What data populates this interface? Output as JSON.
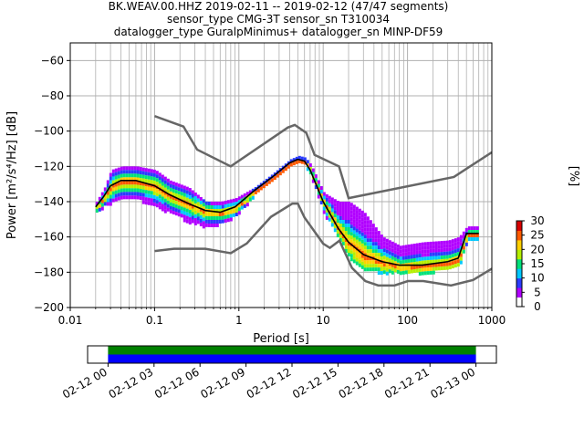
{
  "chart_data": [
    {
      "type": "heatmap",
      "title": [
        "BK.WEAV.00.HHZ   2019-02-11 -- 2019-02-12  (47/47 segments)",
        "sensor_type CMG-3T sensor_sn T310034",
        "datalogger_type GuralpMinimus+ datalogger_sn MINP-DF59"
      ],
      "xlabel": "Period [s]",
      "ylabel": "Power [m²/s⁴/Hz] [dB]",
      "xscale": "log",
      "xlim": [
        0.01,
        1000
      ],
      "ylim": [
        -200,
        -50
      ],
      "xticks": [
        {
          "value": 0.01,
          "label": "0.01"
        },
        {
          "value": 0.1,
          "label": "0.1"
        },
        {
          "value": 1,
          "label": "1"
        },
        {
          "value": 10,
          "label": "10"
        },
        {
          "value": 100,
          "label": "100"
        },
        {
          "value": 1000,
          "label": "1000"
        }
      ],
      "yticks": [
        {
          "value": -60,
          "label": "−60"
        },
        {
          "value": -80,
          "label": "−80"
        },
        {
          "value": -100,
          "label": "−100"
        },
        {
          "value": -120,
          "label": "−120"
        },
        {
          "value": -140,
          "label": "−140"
        },
        {
          "value": -160,
          "label": "−160"
        },
        {
          "value": -180,
          "label": "−180"
        },
        {
          "value": -200,
          "label": "−200"
        }
      ],
      "grid": true,
      "noise_models": {
        "nhnm": {
          "x": [
            0.1,
            0.22,
            0.32,
            0.8,
            3.8,
            4.6,
            6.3,
            7.9,
            15.4,
            20,
            354.8,
            1000
          ],
          "y": [
            -91.5,
            -97.4,
            -110.5,
            -120,
            -98,
            -96.5,
            -101,
            -113.5,
            -120,
            -138,
            -126,
            -112
          ]
        },
        "nlnm": {
          "x": [
            0.1,
            0.17,
            0.4,
            0.8,
            1.24,
            2.4,
            4.3,
            5,
            6,
            10,
            12,
            15.6,
            21.9,
            31.6,
            45,
            70,
            101,
            154,
            328,
            600,
            1000
          ],
          "y": [
            -168,
            -166.7,
            -166.7,
            -169.2,
            -163.7,
            -148.6,
            -141.1,
            -141.1,
            -149,
            -163.8,
            -166.2,
            -162.1,
            -177.5,
            -185,
            -187.5,
            -187.5,
            -185,
            -185,
            -187.5,
            -184.4,
            -178
          ]
        }
      },
      "series": [
        {
          "x": [
            0.02,
            0.025,
            0.03,
            0.04,
            0.06,
            0.1,
            0.15,
            0.25,
            0.4,
            0.6,
            0.9,
            1.5,
            2.5,
            4,
            5,
            6,
            7,
            10,
            15,
            20,
            30,
            50,
            80,
            150,
            300,
            400,
            500,
            700
          ],
          "y": [
            -143,
            -137,
            -131,
            -128,
            -128,
            -131,
            -136,
            -141,
            -145,
            -146,
            -143,
            -134,
            -126,
            -118,
            -116,
            -117,
            -122,
            -140,
            -155,
            -163,
            -170,
            -174,
            -176,
            -176,
            -174,
            -172,
            -158,
            -158
          ]
        }
      ],
      "heatmap_bands": {
        "x": [
          0.02,
          0.025,
          0.03,
          0.04,
          0.06,
          0.1,
          0.15,
          0.25,
          0.4,
          0.6,
          0.9,
          1.5,
          2.5,
          4,
          5,
          6,
          7,
          10,
          15,
          20,
          30,
          50,
          80,
          150,
          300,
          400,
          500,
          700
        ],
        "upper": [
          -140,
          -132,
          -122,
          -120,
          -120,
          -122,
          -128,
          -132,
          -140,
          -140,
          -138,
          -132,
          -124,
          -116,
          -114,
          -115,
          -119,
          -135,
          -140,
          -140,
          -146,
          -160,
          -165,
          -163,
          -162,
          -160,
          -154,
          -154
        ],
        "lower": [
          -146,
          -142,
          -140,
          -138,
          -138,
          -142,
          -146,
          -151,
          -154,
          -152,
          -148,
          -136,
          -128,
          -120,
          -118,
          -119,
          -125,
          -146,
          -160,
          -172,
          -178,
          -180,
          -180,
          -180,
          -178,
          -176,
          -162,
          -162
        ]
      },
      "colorbar": {
        "label": "[%]",
        "range": [
          0,
          30
        ],
        "ticks": [
          {
            "value": 0,
            "label": "0"
          },
          {
            "value": 5,
            "label": "5"
          },
          {
            "value": 10,
            "label": "10"
          },
          {
            "value": 15,
            "label": "15"
          },
          {
            "value": 20,
            "label": "20"
          },
          {
            "value": 25,
            "label": "25"
          },
          {
            "value": 30,
            "label": "30"
          }
        ],
        "colors": [
          "#ffffff",
          "#b100ff",
          "#2a3cff",
          "#00c8ff",
          "#00e27a",
          "#b5f000",
          "#ffd000",
          "#ff5a00",
          "#d80000"
        ]
      }
    },
    {
      "type": "bar",
      "xlim": [
        0,
        1
      ],
      "segments": [
        {
          "start": 0.05,
          "end": 0.95
        }
      ],
      "rows": [
        {
          "color": "#008000"
        },
        {
          "color": "#0000ff"
        }
      ],
      "xticks": [
        {
          "value": 0.05,
          "label": "02-12 00"
        },
        {
          "value": 0.1625,
          "label": "02-12 03"
        },
        {
          "value": 0.275,
          "label": "02-12 06"
        },
        {
          "value": 0.3875,
          "label": "02-12 09"
        },
        {
          "value": 0.5,
          "label": "02-12 12"
        },
        {
          "value": 0.6125,
          "label": "02-12 15"
        },
        {
          "value": 0.725,
          "label": "02-12 18"
        },
        {
          "value": 0.8375,
          "label": "02-12 21"
        },
        {
          "value": 0.95,
          "label": "02-13 00"
        }
      ]
    }
  ]
}
